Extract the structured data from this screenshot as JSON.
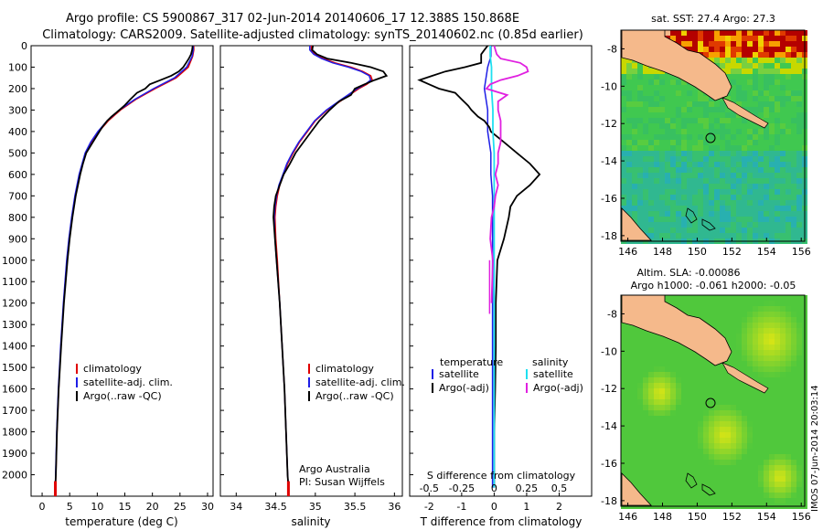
{
  "header": {
    "line1": "Argo profile: CS 5900867_317 02-Jun-2014 20140606_17 12.388S 150.868E",
    "line2": "Climatology: CARS2009. Satellite-adjusted climatology: synTS_20140602.nc (0.85d earlier)"
  },
  "footer": {
    "imos_stamp": "IMOS 07-Jun-2014 20:03:14"
  },
  "depth_axis": {
    "ylim": [
      0,
      2100
    ],
    "ticks": [
      0,
      100,
      200,
      300,
      400,
      500,
      600,
      700,
      800,
      900,
      1000,
      1100,
      1200,
      1300,
      1400,
      1500,
      1600,
      1700,
      1800,
      1900,
      2000
    ],
    "tick_labels": [
      "0",
      "100",
      "200",
      "300",
      "400",
      "500",
      "600",
      "700",
      "800",
      "900",
      "1000",
      "1100",
      "1200",
      "1300",
      "1400",
      "1500",
      "1600",
      "1700",
      "1800",
      "1900",
      "2000"
    ]
  },
  "colors": {
    "climatology": "#e00000",
    "satellite": "#1e1ee6",
    "argo": "#000000",
    "sal_satellite": "#1ee0f0",
    "sal_argo": "#e020e0"
  },
  "chart_data": [
    {
      "type": "line",
      "id": "temperature",
      "xlabel": "temperature (deg C)",
      "xlim": [
        -2,
        31
      ],
      "xticks": [
        0,
        5,
        10,
        15,
        20,
        25,
        30
      ],
      "xtick_labels": [
        "0",
        "5",
        "10",
        "15",
        "20",
        "25",
        "30"
      ],
      "legend": {
        "placement": "lower-center",
        "entries": [
          "climatology",
          "satellite-adj. clim.",
          "Argo(..raw -QC)"
        ]
      },
      "series": [
        {
          "name": "climatology",
          "depth": [
            0,
            20,
            50,
            100,
            150,
            200,
            250,
            300,
            350,
            400,
            450,
            500,
            600,
            700,
            800,
            900,
            1000,
            1200,
            1400,
            1600,
            1800,
            2000,
            2060
          ],
          "values": [
            27.5,
            27.5,
            27.3,
            26.5,
            24.3,
            20.5,
            17.0,
            14.2,
            12.0,
            10.3,
            8.9,
            7.9,
            6.8,
            6.0,
            5.4,
            4.9,
            4.5,
            3.9,
            3.4,
            3.0,
            2.7,
            2.5,
            2.4
          ]
        },
        {
          "name": "satellite-adj. clim.",
          "depth": [
            0,
            20,
            50,
            100,
            150,
            200,
            250,
            300,
            350,
            400,
            450,
            500,
            600,
            700,
            800,
            900,
            1000,
            1200,
            1400,
            1600,
            1800,
            2000,
            2060
          ],
          "values": [
            27.4,
            27.4,
            27.2,
            26.2,
            24.0,
            20.2,
            16.8,
            14.0,
            11.8,
            10.1,
            8.8,
            7.8,
            6.7,
            5.95,
            5.35,
            4.85,
            4.45,
            3.85,
            3.35,
            2.95,
            2.65,
            2.45,
            2.4
          ]
        },
        {
          "name": "Argo(..raw -QC)",
          "depth": [
            0,
            20,
            40,
            60,
            80,
            100,
            120,
            140,
            160,
            180,
            200,
            220,
            250,
            280,
            300,
            330,
            350,
            380,
            400,
            450,
            500,
            550,
            600,
            700,
            800,
            900,
            1000,
            1200,
            1400,
            1600,
            1800,
            2000,
            2060
          ],
          "values": [
            27.3,
            27.2,
            27.0,
            26.6,
            26.1,
            25.6,
            24.8,
            23.4,
            21.5,
            19.5,
            18.7,
            17.2,
            16.0,
            14.9,
            14.0,
            12.6,
            11.8,
            10.9,
            10.4,
            9.2,
            8.0,
            7.4,
            6.9,
            6.1,
            5.5,
            5.0,
            4.6,
            3.95,
            3.45,
            3.0,
            2.7,
            2.5,
            2.4
          ]
        }
      ]
    },
    {
      "type": "line",
      "id": "salinity",
      "xlabel": "salinity",
      "xlim": [
        33.8,
        36.1
      ],
      "xticks": [
        34,
        34.5,
        35,
        35.5,
        36
      ],
      "xtick_labels": [
        "34",
        "34.5",
        "35",
        "35.5",
        "36"
      ],
      "legend": {
        "placement": "lower-right",
        "entries": [
          "climatology",
          "satellite-adj. clim.",
          "Argo(..raw -QC)"
        ]
      },
      "annotation": {
        "line1": "Argo Australia",
        "line2": "PI: Susan Wijffels"
      },
      "series": [
        {
          "name": "climatology",
          "depth": [
            0,
            20,
            40,
            60,
            80,
            100,
            120,
            140,
            160,
            180,
            200,
            250,
            300,
            350,
            400,
            450,
            500,
            550,
            600,
            650,
            700,
            750,
            800,
            900,
            1000,
            1200,
            1400,
            1600,
            1800,
            2000,
            2060
          ],
          "values": [
            34.95,
            34.95,
            35.0,
            35.1,
            35.25,
            35.45,
            35.6,
            35.7,
            35.72,
            35.65,
            35.55,
            35.35,
            35.15,
            35.0,
            34.9,
            34.8,
            34.72,
            34.65,
            34.6,
            34.55,
            34.52,
            34.5,
            34.49,
            34.5,
            34.52,
            34.55,
            34.58,
            34.61,
            34.63,
            34.65,
            34.66
          ]
        },
        {
          "name": "satellite-adj. clim.",
          "depth": [
            0,
            20,
            40,
            60,
            80,
            100,
            120,
            140,
            160,
            180,
            200,
            250,
            300,
            350,
            400,
            450,
            500,
            550,
            600,
            650,
            700,
            750,
            800,
            900,
            1000,
            1200,
            1400,
            1600,
            1800,
            2000,
            2060
          ],
          "values": [
            34.93,
            34.93,
            34.98,
            35.08,
            35.22,
            35.42,
            35.58,
            35.68,
            35.7,
            35.63,
            35.53,
            35.33,
            35.14,
            34.99,
            34.89,
            34.79,
            34.71,
            34.64,
            34.59,
            34.54,
            34.51,
            34.49,
            34.48,
            34.49,
            34.51,
            34.55,
            34.58,
            34.61,
            34.63,
            34.65,
            34.66
          ]
        },
        {
          "name": "Argo(..raw -QC)",
          "depth": [
            0,
            20,
            40,
            60,
            80,
            100,
            120,
            140,
            160,
            180,
            200,
            230,
            260,
            300,
            350,
            400,
            450,
            500,
            550,
            600,
            650,
            700,
            750,
            800,
            900,
            1000,
            1200,
            1400,
            1600,
            1800,
            2000,
            2060
          ],
          "values": [
            34.97,
            34.96,
            35.02,
            35.15,
            35.45,
            35.7,
            35.86,
            35.9,
            35.75,
            35.62,
            35.5,
            35.45,
            35.3,
            35.18,
            35.05,
            34.95,
            34.85,
            34.75,
            34.68,
            34.6,
            34.55,
            34.5,
            34.48,
            34.47,
            34.49,
            34.51,
            34.55,
            34.58,
            34.61,
            34.63,
            34.65,
            34.66
          ]
        }
      ]
    },
    {
      "type": "line",
      "id": "difference",
      "xlabel": "T difference from climatology",
      "xlabel_top": "S difference from climatology",
      "xlim": [
        -2.6,
        3.0
      ],
      "xticks": [
        -2,
        -1,
        0,
        1,
        2
      ],
      "xtick_labels": [
        "-2",
        "-1",
        "0",
        "1",
        "2"
      ],
      "s_ticks": [
        -0.5,
        -0.25,
        0,
        0.25,
        0.5
      ],
      "s_tick_labels": [
        "-0.5",
        "-0.25",
        "0",
        "0.25",
        "0.5"
      ],
      "legend": {
        "placement": "lower-center",
        "temperature_title": "temperature",
        "salinity_title": "salinity",
        "entries": [
          "satellite",
          "Argo(-adj)",
          "satellite",
          "Argo(-adj)"
        ]
      },
      "series": [
        {
          "name": "temperature satellite",
          "depth": [
            0,
            50,
            100,
            200,
            300,
            400,
            500,
            600,
            700,
            800,
            1000,
            1200,
            1400,
            1600,
            1800,
            2000,
            2060
          ],
          "values": [
            -0.1,
            -0.1,
            -0.2,
            -0.3,
            -0.2,
            -0.2,
            -0.1,
            -0.1,
            -0.05,
            -0.05,
            -0.05,
            -0.05,
            -0.05,
            -0.05,
            -0.05,
            -0.05,
            -0.05
          ]
        },
        {
          "name": "temperature Argo(-adj)",
          "depth": [
            0,
            20,
            40,
            60,
            80,
            100,
            120,
            140,
            160,
            180,
            200,
            220,
            250,
            280,
            300,
            330,
            350,
            380,
            400,
            450,
            500,
            550,
            600,
            650,
            700,
            750,
            800,
            900,
            1000,
            1200,
            1400,
            1600,
            1800,
            2000,
            2060
          ],
          "values": [
            -0.2,
            -0.3,
            -0.4,
            -0.4,
            -0.4,
            -0.9,
            -1.5,
            -1.9,
            -2.3,
            -2.0,
            -1.7,
            -1.2,
            -1.0,
            -0.8,
            -0.7,
            -0.5,
            -0.3,
            -0.15,
            -0.1,
            0.3,
            0.7,
            1.1,
            1.4,
            1.1,
            0.7,
            0.5,
            0.45,
            0.3,
            0.1,
            0.05,
            0.05,
            0.03,
            0.0,
            0.0,
            0.0
          ]
        },
        {
          "name": "salinity satellite",
          "depth": [
            0,
            50,
            100,
            200,
            300,
            400,
            500,
            600,
            700,
            800,
            1000,
            1200,
            1400,
            1600,
            1800,
            2000,
            2060
          ],
          "values": [
            -0.03,
            -0.03,
            -0.02,
            -0.02,
            -0.01,
            -0.01,
            0.0,
            0.0,
            0.0,
            0.0,
            0.0,
            0.0,
            0.0,
            0.0,
            0.0,
            0.0,
            0.0
          ]
        },
        {
          "name": "salinity Argo(-adj)",
          "depth": [
            0,
            20,
            40,
            60,
            80,
            100,
            120,
            140,
            160,
            180,
            200,
            230,
            260,
            300,
            350,
            400,
            450,
            500,
            550,
            600,
            650,
            700,
            750,
            800,
            900,
            1000,
            1200
          ],
          "values": [
            0.0,
            0.01,
            0.02,
            0.05,
            0.2,
            0.25,
            0.26,
            0.18,
            0.05,
            -0.03,
            -0.06,
            0.1,
            0.03,
            0.03,
            0.05,
            0.05,
            0.05,
            0.03,
            0.03,
            0.01,
            0.03,
            0.01,
            0.0,
            -0.02,
            -0.03,
            -0.01,
            -0.02
          ]
        }
      ]
    },
    {
      "type": "heatmap",
      "id": "sst_map",
      "title": "sat. SST: 27.4 Argo: 27.3",
      "xlim": [
        145.6,
        156.2
      ],
      "ylim": [
        -18.3,
        -7.0
      ],
      "xticks": [
        146,
        148,
        150,
        152,
        154,
        156
      ],
      "xtick_labels": [
        "146",
        "148",
        "150",
        "152",
        "154",
        "156"
      ],
      "yticks": [
        -8,
        -10,
        -12,
        -14,
        -16,
        -18
      ],
      "ytick_labels": [
        "-8",
        "-10",
        "-12",
        "-14",
        "-16",
        "-18"
      ],
      "argo_position": {
        "lon": 150.868,
        "lat": -12.388
      }
    },
    {
      "type": "heatmap",
      "id": "sla_map",
      "title_line1": "Altim. SLA: -0.00086",
      "title_line2": "Argo h1000: -0.061 h2000: -0.05",
      "xlim": [
        145.6,
        156.2
      ],
      "ylim": [
        -18.3,
        -7.0
      ],
      "xticks": [
        146,
        148,
        150,
        152,
        154,
        156
      ],
      "xtick_labels": [
        "146",
        "148",
        "150",
        "152",
        "154",
        "156"
      ],
      "yticks": [
        -8,
        -10,
        -12,
        -14,
        -16,
        -18
      ],
      "ytick_labels": [
        "-8",
        "-10",
        "-12",
        "-14",
        "-16",
        "-18"
      ],
      "argo_position": {
        "lon": 150.868,
        "lat": -12.388
      }
    }
  ]
}
